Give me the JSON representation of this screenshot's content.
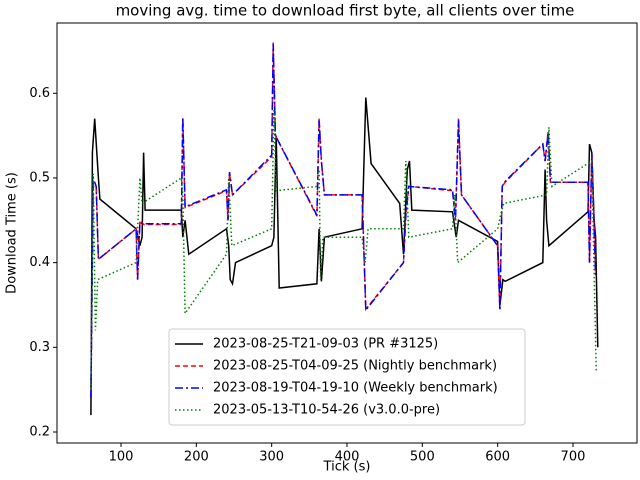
{
  "chart_data": {
    "type": "line",
    "title": "moving avg. time to download first byte, all clients over time",
    "xlabel": "Tick (s)",
    "ylabel": "Download Time (s)",
    "xlim": [
      15,
      785
    ],
    "ylim": [
      0.187,
      0.683
    ],
    "xticks": [
      100,
      200,
      300,
      400,
      500,
      600,
      700
    ],
    "yticks": [
      0.2,
      0.3,
      0.4,
      0.5,
      0.6
    ],
    "legend": "lower center",
    "series": [
      {
        "name": "2023-08-25-T21-09-03 (PR #3125)",
        "color": "#000000",
        "linestyle": "solid",
        "x": [
          60,
          62,
          65,
          70,
          72,
          120,
          125,
          128,
          130,
          132,
          180,
          182,
          185,
          190,
          240,
          243,
          245,
          248,
          252,
          300,
          303,
          306,
          310,
          360,
          363,
          366,
          370,
          420,
          425,
          432,
          470,
          475,
          480,
          483,
          486,
          540,
          545,
          548,
          600,
          603,
          607,
          610,
          660,
          663,
          665,
          668,
          720,
          722,
          725,
          728,
          730,
          733
        ],
        "values": [
          0.22,
          0.53,
          0.57,
          0.5,
          0.475,
          0.44,
          0.42,
          0.43,
          0.53,
          0.462,
          0.462,
          0.43,
          0.45,
          0.41,
          0.44,
          0.42,
          0.38,
          0.375,
          0.4,
          0.42,
          0.43,
          0.55,
          0.37,
          0.375,
          0.44,
          0.378,
          0.43,
          0.44,
          0.595,
          0.517,
          0.47,
          0.41,
          0.51,
          0.52,
          0.462,
          0.46,
          0.43,
          0.45,
          0.425,
          0.35,
          0.38,
          0.378,
          0.4,
          0.51,
          0.45,
          0.42,
          0.46,
          0.54,
          0.53,
          0.45,
          0.43,
          0.3
        ]
      },
      {
        "name": "2023-08-25-T04-09-25 (Nightly benchmark)",
        "color": "#ff0000",
        "linestyle": "dashed",
        "x": [
          60,
          63,
          67,
          70,
          120,
          122,
          125,
          130,
          180,
          182,
          185,
          240,
          242,
          244,
          248,
          300,
          302,
          305,
          360,
          363,
          366,
          370,
          420,
          425,
          475,
          478,
          482,
          540,
          544,
          548,
          552,
          600,
          603,
          606,
          610,
          660,
          663,
          667,
          670,
          720,
          722,
          725,
          730
        ],
        "values": [
          0.24,
          0.49,
          0.49,
          0.404,
          0.44,
          0.38,
          0.45,
          0.445,
          0.445,
          0.57,
          0.465,
          0.485,
          0.45,
          0.505,
          0.48,
          0.525,
          0.66,
          0.55,
          0.455,
          0.57,
          0.52,
          0.48,
          0.48,
          0.345,
          0.4,
          0.455,
          0.49,
          0.485,
          0.45,
          0.57,
          0.48,
          0.42,
          0.345,
          0.49,
          0.495,
          0.54,
          0.52,
          0.555,
          0.495,
          0.495,
          0.4,
          0.53,
          0.385
        ]
      },
      {
        "name": "2023-08-19-T04-19-10 (Weekly benchmark)",
        "color": "#0000ff",
        "linestyle": "dashdot",
        "x": [
          60,
          63,
          67,
          70,
          120,
          122,
          125,
          130,
          180,
          182,
          185,
          240,
          242,
          244,
          248,
          300,
          302,
          305,
          360,
          363,
          366,
          370,
          420,
          425,
          475,
          478,
          482,
          540,
          544,
          548,
          552,
          600,
          603,
          606,
          610,
          660,
          663,
          667,
          670,
          720,
          722,
          725,
          730
        ],
        "values": [
          0.24,
          0.5,
          0.49,
          0.404,
          0.44,
          0.38,
          0.447,
          0.446,
          0.446,
          0.572,
          0.466,
          0.486,
          0.45,
          0.507,
          0.48,
          0.527,
          0.658,
          0.55,
          0.456,
          0.568,
          0.52,
          0.48,
          0.48,
          0.344,
          0.4,
          0.456,
          0.49,
          0.486,
          0.45,
          0.568,
          0.48,
          0.42,
          0.344,
          0.49,
          0.496,
          0.54,
          0.52,
          0.553,
          0.495,
          0.495,
          0.4,
          0.53,
          0.386
        ]
      },
      {
        "name": "2023-05-13-T10-54-26 (v3.0.0-pre)",
        "color": "#008000",
        "linestyle": "dotted",
        "x": [
          60,
          63,
          66,
          69,
          120,
          125,
          128,
          180,
          182,
          185,
          240,
          243,
          247,
          300,
          303,
          306,
          360,
          363,
          365,
          368,
          420,
          424,
          428,
          475,
          478,
          482,
          540,
          543,
          547,
          600,
          605,
          608,
          665,
          668,
          672,
          725,
          728,
          731
        ],
        "values": [
          0.25,
          0.505,
          0.32,
          0.38,
          0.4,
          0.5,
          0.47,
          0.5,
          0.48,
          0.34,
          0.41,
          0.5,
          0.42,
          0.44,
          0.58,
          0.485,
          0.49,
          0.51,
          0.38,
          0.43,
          0.43,
          0.4,
          0.44,
          0.44,
          0.52,
          0.43,
          0.44,
          0.48,
          0.4,
          0.44,
          0.46,
          0.47,
          0.48,
          0.56,
          0.49,
          0.52,
          0.39,
          0.27
        ]
      }
    ]
  }
}
